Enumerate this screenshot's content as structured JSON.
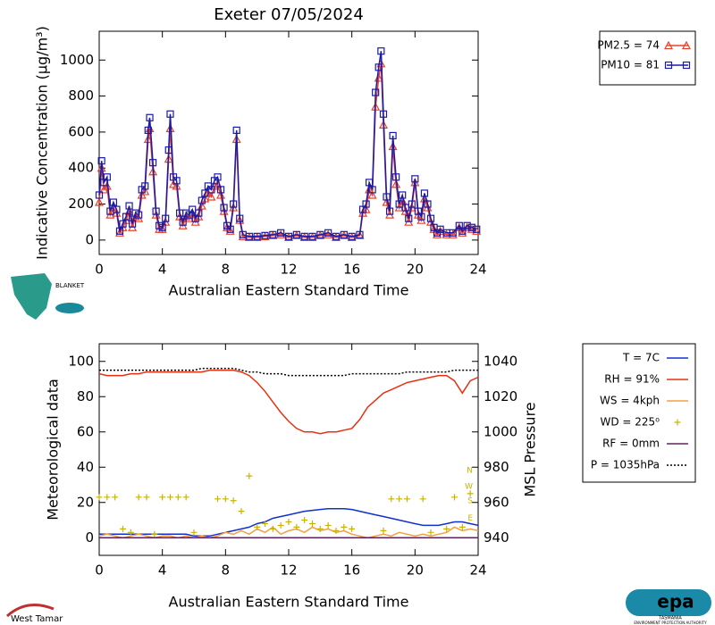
{
  "chart_data": [
    {
      "type": "line",
      "title": "Exeter 07/05/2024",
      "x_label": "Australian Eastern Standard Time",
      "y_label": "Indicative Concentration (µg/m³)",
      "xlim": [
        0,
        24
      ],
      "xticks": [
        0,
        4,
        8,
        12,
        16,
        20,
        24
      ],
      "ylim": [
        -80,
        1160
      ],
      "yticks": [
        0,
        200,
        400,
        600,
        800,
        1000
      ],
      "legend": "outside right",
      "x": [
        0,
        0.15,
        0.3,
        0.5,
        0.7,
        0.9,
        1.1,
        1.3,
        1.5,
        1.7,
        1.9,
        2.1,
        2.3,
        2.5,
        2.7,
        2.9,
        3.1,
        3.2,
        3.4,
        3.6,
        3.8,
        4.0,
        4.2,
        4.4,
        4.5,
        4.7,
        4.9,
        5.1,
        5.3,
        5.5,
        5.7,
        5.9,
        6.1,
        6.3,
        6.5,
        6.7,
        6.9,
        7.1,
        7.3,
        7.5,
        7.7,
        7.9,
        8.1,
        8.3,
        8.5,
        8.7,
        8.9,
        9.1,
        9.5,
        10,
        10.5,
        11,
        11.5,
        12,
        12.5,
        13,
        13.5,
        14,
        14.5,
        15,
        15.5,
        16,
        16.5,
        16.7,
        16.9,
        17.1,
        17.3,
        17.5,
        17.7,
        17.85,
        18.0,
        18.2,
        18.4,
        18.6,
        18.8,
        19.0,
        19.2,
        19.4,
        19.6,
        19.8,
        20.0,
        20.2,
        20.4,
        20.6,
        20.8,
        21.0,
        21.2,
        21.4,
        21.6,
        22,
        22.4,
        22.8,
        23,
        23.3,
        23.6,
        23.9
      ],
      "series": [
        {
          "name": "PM2.5 = 74",
          "color": "#e8402a",
          "marker": "triangle",
          "values": [
            210,
            400,
            280,
            300,
            140,
            180,
            150,
            40,
            70,
            110,
            160,
            70,
            130,
            120,
            250,
            270,
            560,
            620,
            380,
            140,
            60,
            60,
            100,
            450,
            620,
            310,
            300,
            130,
            80,
            130,
            120,
            150,
            100,
            130,
            190,
            230,
            260,
            240,
            300,
            310,
            250,
            160,
            70,
            50,
            180,
            560,
            110,
            20,
            15,
            15,
            20,
            25,
            30,
            15,
            25,
            15,
            15,
            25,
            30,
            15,
            25,
            15,
            25,
            150,
            170,
            280,
            250,
            740,
            900,
            980,
            640,
            210,
            140,
            520,
            310,
            180,
            220,
            160,
            100,
            180,
            320,
            140,
            110,
            230,
            180,
            100,
            60,
            30,
            50,
            30,
            30,
            70,
            40,
            70,
            60,
            50
          ]
        },
        {
          "name": "PM10 = 81",
          "color": "#1a1aa8",
          "marker": "square",
          "values": [
            250,
            440,
            320,
            350,
            160,
            210,
            170,
            50,
            90,
            130,
            190,
            90,
            150,
            140,
            280,
            300,
            610,
            680,
            430,
            160,
            80,
            70,
            120,
            500,
            700,
            350,
            330,
            150,
            100,
            150,
            140,
            170,
            120,
            150,
            220,
            260,
            300,
            280,
            330,
            350,
            280,
            180,
            80,
            60,
            200,
            610,
            120,
            30,
            20,
            20,
            25,
            30,
            40,
            20,
            30,
            20,
            20,
            30,
            40,
            20,
            30,
            20,
            30,
            170,
            200,
            320,
            280,
            820,
            960,
            1050,
            700,
            240,
            160,
            580,
            350,
            200,
            250,
            180,
            120,
            200,
            340,
            160,
            130,
            260,
            200,
            120,
            70,
            40,
            60,
            40,
            40,
            80,
            50,
            80,
            70,
            60
          ]
        }
      ]
    },
    {
      "type": "line",
      "x_label": "Australian Eastern Standard Time",
      "y_label": "Meteorological data",
      "y2_label": "MSL Pressure",
      "xlim": [
        0,
        24
      ],
      "xticks": [
        0,
        4,
        8,
        12,
        16,
        20,
        24
      ],
      "ylim": [
        -10,
        110
      ],
      "yticks": [
        0,
        20,
        40,
        60,
        80,
        100
      ],
      "y2lim": [
        930,
        1050
      ],
      "y2ticks": [
        940,
        960,
        980,
        1000,
        1020,
        1040
      ],
      "legend": "outside right",
      "annotations": [
        {
          "text": "N",
          "y": 38
        },
        {
          "text": "W",
          "y": 29
        },
        {
          "text": "S",
          "y": 21
        },
        {
          "text": "E",
          "y": 11
        }
      ],
      "x": [
        0,
        0.5,
        1,
        1.5,
        2,
        2.5,
        3,
        3.5,
        4,
        4.5,
        5,
        5.5,
        6,
        6.5,
        7,
        7.5,
        8,
        8.5,
        9,
        9.5,
        10,
        10.5,
        11,
        11.5,
        12,
        12.5,
        13,
        13.5,
        14,
        14.5,
        15,
        15.5,
        16,
        16.5,
        17,
        17.5,
        18,
        18.5,
        19,
        19.5,
        20,
        20.5,
        21,
        21.5,
        22,
        22.5,
        23,
        23.5,
        24
      ],
      "series": [
        {
          "name": "T = 7C",
          "color": "#1030d0",
          "values": [
            2,
            2,
            2,
            2,
            2,
            2,
            2,
            2,
            2,
            2,
            2,
            2,
            1,
            1,
            1,
            2,
            3,
            4,
            5,
            6,
            8,
            9,
            11,
            12,
            13,
            14,
            15,
            15.5,
            16,
            16.5,
            16.5,
            16.5,
            16,
            15,
            14,
            13,
            12,
            11,
            10,
            9,
            8,
            7,
            7,
            7,
            8,
            9,
            9,
            8,
            7
          ]
        },
        {
          "name": "RH = 91%",
          "color": "#e83010",
          "values": [
            93,
            92,
            92,
            92,
            93,
            93,
            94,
            94,
            94,
            94,
            94,
            94,
            94,
            94,
            95,
            95,
            95,
            95,
            94,
            92,
            88,
            83,
            77,
            71,
            66,
            62,
            60,
            60,
            59,
            60,
            60,
            61,
            62,
            67,
            74,
            78,
            82,
            84,
            86,
            88,
            89,
            90,
            91,
            92,
            92,
            89,
            82,
            89,
            91
          ]
        },
        {
          "name": "WS = 4kph",
          "color": "#f0a040",
          "values": [
            1,
            2,
            1,
            0,
            1,
            2,
            1,
            0,
            1,
            1,
            0,
            1,
            0,
            1,
            0,
            1,
            3,
            2,
            4,
            2,
            5,
            3,
            6,
            2,
            4,
            5,
            3,
            6,
            4,
            5,
            3,
            4,
            2,
            1,
            0,
            1,
            2,
            1,
            3,
            2,
            1,
            2,
            1,
            2,
            3,
            6,
            4,
            5,
            4
          ]
        },
        {
          "name": "WD = 225⁰",
          "color": "#c8b400",
          "marker": "plus",
          "line": false,
          "values": [
            23,
            23,
            23,
            5,
            3,
            23,
            23,
            2,
            23,
            23,
            23,
            23,
            3,
            null,
            null,
            22,
            22,
            21,
            15,
            35,
            6,
            8,
            5,
            7,
            9,
            6,
            10,
            8,
            5,
            7,
            4,
            6,
            5,
            null,
            null,
            null,
            4,
            22,
            22,
            22,
            null,
            22,
            3,
            null,
            5,
            23,
            6,
            25,
            null
          ]
        },
        {
          "name": "RF = 0mm",
          "color": "#602060",
          "values": [
            0,
            0,
            0,
            0,
            0,
            0,
            0,
            0,
            0,
            0,
            0,
            0,
            0,
            0,
            0,
            0,
            0,
            0,
            0,
            0,
            0,
            0,
            0,
            0,
            0,
            0,
            0,
            0,
            0,
            0,
            0,
            0,
            0,
            0,
            0,
            0,
            0,
            0,
            0,
            0,
            0,
            0,
            0,
            0,
            0,
            0,
            0,
            0,
            0
          ]
        },
        {
          "name": "P = 1035hPa",
          "color": "#000000",
          "axis": "y2",
          "dash": "dotted",
          "values": [
            1035,
            1035,
            1035,
            1035,
            1035,
            1035,
            1035,
            1035,
            1035,
            1035,
            1035,
            1035,
            1035,
            1036,
            1036,
            1036,
            1036,
            1036,
            1035,
            1034,
            1034,
            1033,
            1033,
            1033,
            1032,
            1032,
            1032,
            1032,
            1032,
            1032,
            1032,
            1032,
            1033,
            1033,
            1033,
            1033,
            1033,
            1033,
            1033,
            1034,
            1034,
            1034,
            1034,
            1034,
            1034,
            1035,
            1035,
            1035,
            1035
          ]
        }
      ]
    }
  ],
  "logos": {
    "blanket": "BLANKET",
    "epa": "epa",
    "epa_state": "TASMANIA",
    "epa_name": "ENVIRONMENT PROTECTION AUTHORITY",
    "council": "West Tamar"
  }
}
